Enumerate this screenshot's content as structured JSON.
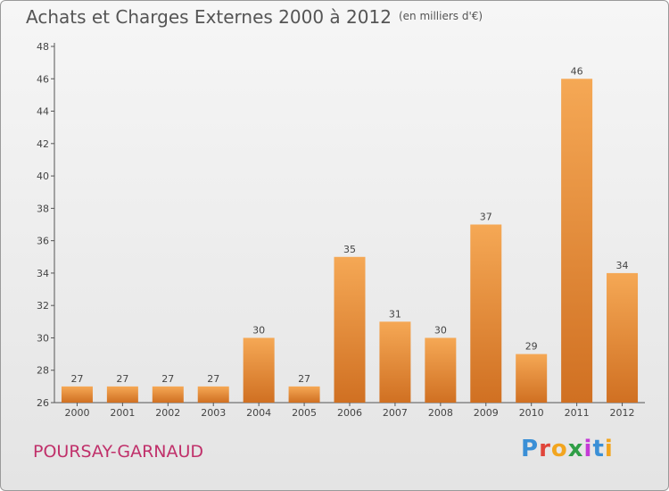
{
  "title": "Achats et Charges Externes 2000 à 2012",
  "unit": "(en milliers d'€)",
  "city": "POURSAY-GARNAUD",
  "logo": "Proxiti",
  "colors": {
    "bar_top": "#f5a855",
    "bar_bottom": "#d07022",
    "city": "#c0306a",
    "title": "#555555"
  },
  "chart_data": {
    "type": "bar",
    "categories": [
      "2000",
      "2001",
      "2002",
      "2003",
      "2004",
      "2005",
      "2006",
      "2007",
      "2008",
      "2009",
      "2010",
      "2011",
      "2012"
    ],
    "values": [
      27,
      27,
      27,
      27,
      30,
      27,
      35,
      31,
      30,
      37,
      29,
      46,
      34
    ],
    "ylim": [
      26,
      48
    ],
    "yticks": [
      26,
      28,
      30,
      32,
      34,
      36,
      38,
      40,
      42,
      44,
      46,
      48
    ],
    "grid": false
  }
}
